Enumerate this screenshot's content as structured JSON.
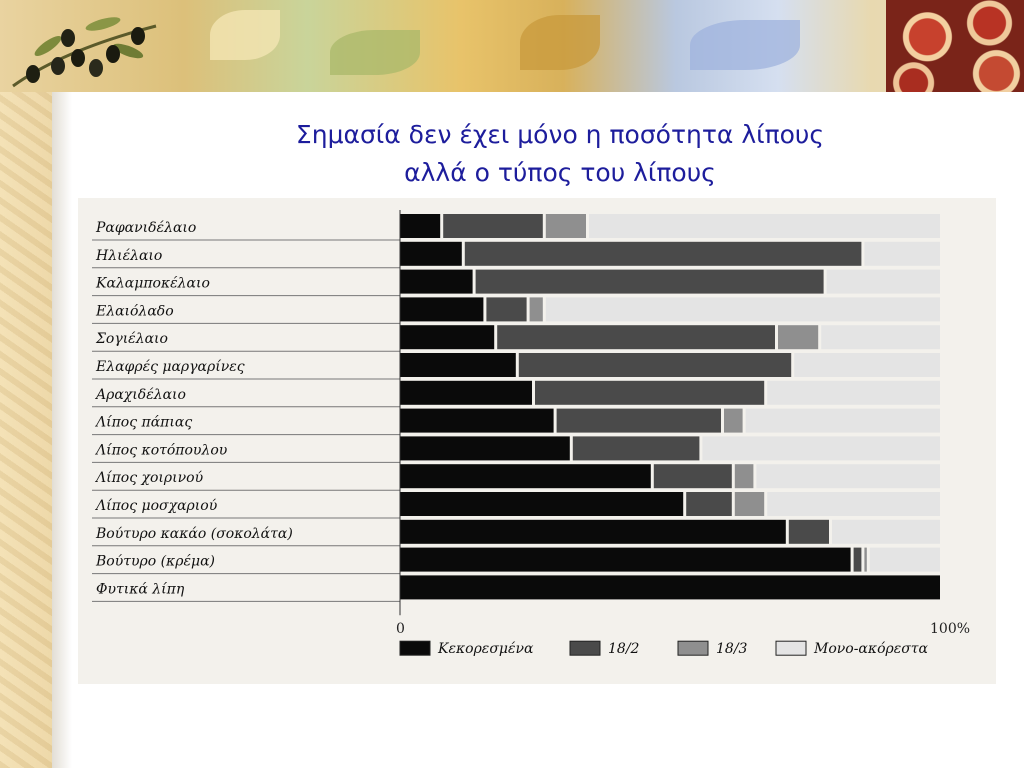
{
  "slide": {
    "title_line1": "Σημασία δεν έχει μόνο η ποσότητα λίπους",
    "title_line2": "αλλά ο τύπος του λίπους"
  },
  "chart_data": {
    "type": "bar",
    "orientation": "horizontal-stacked",
    "categories": [
      "Ραφανιδέλαιο",
      "Ηλιέλαιο",
      "Καλαμποκέλαιο",
      "Ελαιόλαδο",
      "Σογιέλαιο",
      "Ελαφρές μαργαρίνες",
      "Αραχιδέλαιο",
      "Λίπος πάπιας",
      "Λίπος κοτόπουλου",
      "Λίπος χοιρινού",
      "Λίπος μοσχαριού",
      "Βούτυρο κακάο (σοκολάτα)",
      "Βούτυρο (κρέμα)",
      "Φυτικά λίπη"
    ],
    "series": [
      {
        "name": "Κεκορεσμένα",
        "color": "#0a0a0a",
        "values": [
          8,
          12,
          14,
          16,
          18,
          22,
          25,
          29,
          32,
          47,
          53,
          72,
          84,
          100
        ]
      },
      {
        "name": "18/2",
        "color": "#4a4a4a",
        "values": [
          19,
          74,
          65,
          8,
          52,
          51,
          43,
          31,
          24,
          15,
          9,
          8,
          2,
          0
        ]
      },
      {
        "name": "18/3",
        "color": "#8f8f8f",
        "values": [
          8,
          0,
          0,
          3,
          8,
          0,
          0,
          4,
          0,
          4,
          6,
          0,
          1,
          0
        ]
      },
      {
        "name": "Μονο-ακόρεστα",
        "color": "#e4e4e4",
        "values": [
          65,
          14,
          21,
          73,
          22,
          27,
          32,
          36,
          44,
          34,
          32,
          20,
          13,
          0
        ]
      }
    ],
    "xlim": [
      0,
      100
    ],
    "x_tick_labels": [
      "0",
      "100%"
    ],
    "legend_position": "bottom",
    "grid": false
  }
}
